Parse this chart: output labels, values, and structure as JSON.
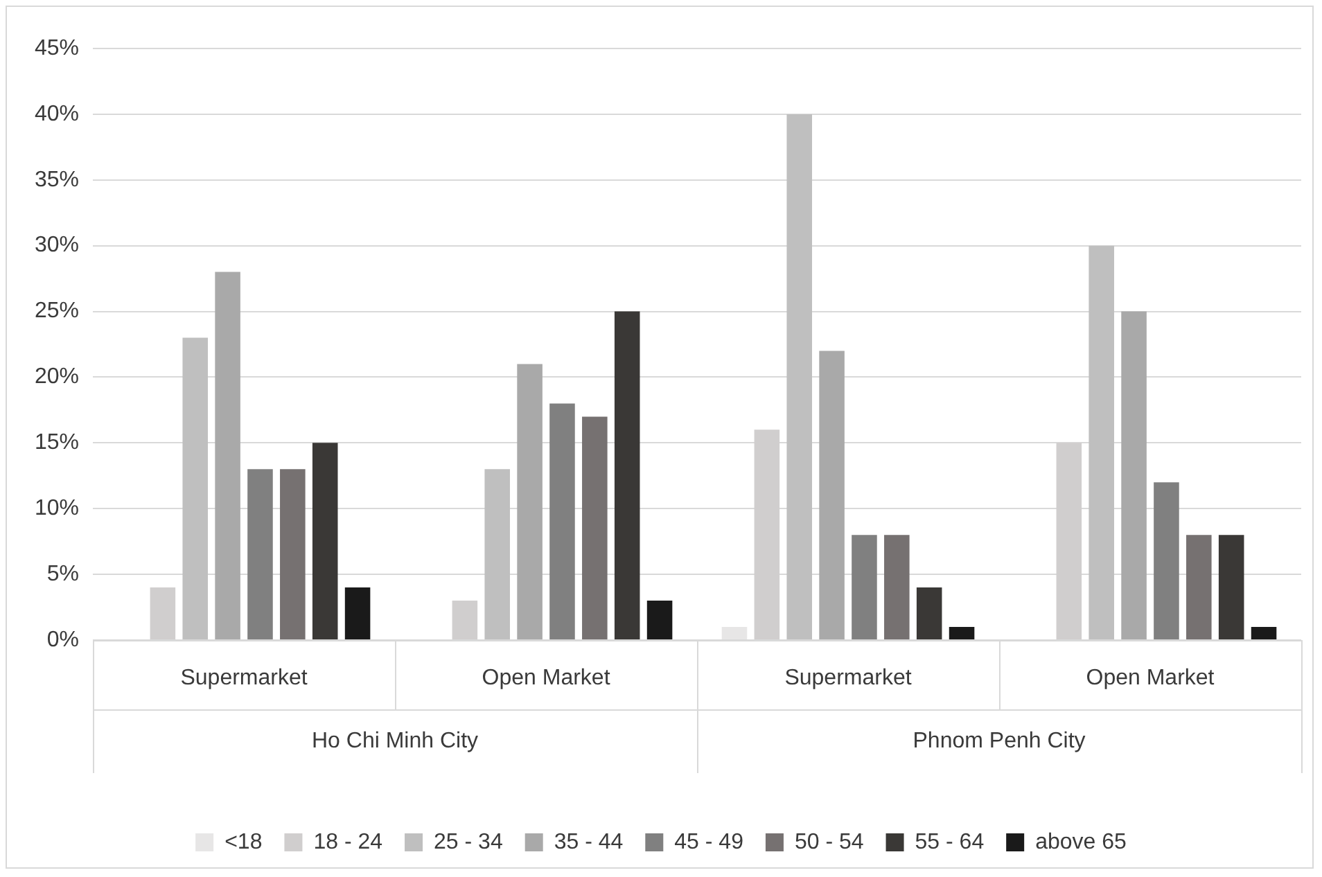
{
  "chart_data": {
    "type": "bar",
    "categories": [
      "Supermarket",
      "Open Market",
      "Supermarket",
      "Open Market"
    ],
    "annotations": [
      "Ho Chi Minh City",
      "Phnom Penh City"
    ],
    "series": [
      {
        "name": "<18",
        "color": "#e7e6e6",
        "values": [
          0,
          0,
          1,
          0
        ]
      },
      {
        "name": "18 - 24",
        "color": "#d0cece",
        "values": [
          4,
          3,
          16,
          15
        ]
      },
      {
        "name": "25 - 34",
        "color": "#bfbfbf",
        "values": [
          23,
          13,
          40,
          30
        ]
      },
      {
        "name": "35 - 44",
        "color": "#a9a9a9",
        "values": [
          28,
          21,
          22,
          25
        ]
      },
      {
        "name": "45 - 49",
        "color": "#808080",
        "values": [
          13,
          18,
          8,
          12
        ]
      },
      {
        "name": "50 - 54",
        "color": "#767171",
        "values": [
          13,
          17,
          8,
          8
        ]
      },
      {
        "name": "55 - 64",
        "color": "#3a3836",
        "values": [
          15,
          25,
          4,
          8
        ]
      },
      {
        "name": "above 65",
        "color": "#1a1a1a",
        "values": [
          4,
          3,
          1,
          1
        ]
      }
    ],
    "ylim": [
      0,
      45
    ],
    "yticks": [
      {
        "value": 0,
        "label": "0%"
      },
      {
        "value": 5,
        "label": "5%"
      },
      {
        "value": 10,
        "label": "10%"
      },
      {
        "value": 15,
        "label": "15%"
      },
      {
        "value": 20,
        "label": "20%"
      },
      {
        "value": 25,
        "label": "25%"
      },
      {
        "value": 30,
        "label": "30%"
      },
      {
        "value": 35,
        "label": "35%"
      },
      {
        "value": 40,
        "label": "40%"
      },
      {
        "value": 45,
        "label": "45%"
      }
    ],
    "grid": "y",
    "legend": "bottom"
  }
}
